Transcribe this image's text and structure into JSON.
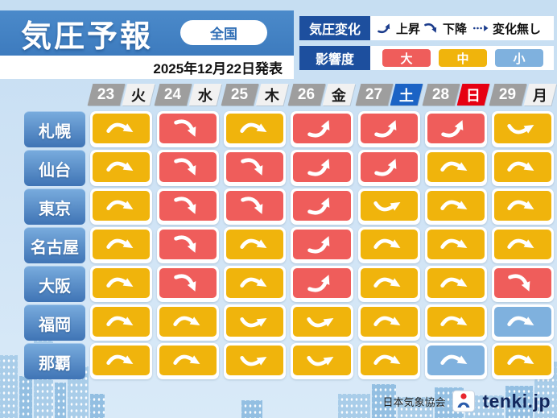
{
  "header": {
    "title": "気圧予報",
    "region_button_label": "全国",
    "announcement": "2025年12月22日発表"
  },
  "legend": {
    "pressure_change_label": "気圧変化",
    "change_items": [
      {
        "icon": "arrow-up",
        "label": "上昇"
      },
      {
        "icon": "arrow-down",
        "label": "下降"
      },
      {
        "icon": "arrow-nochange",
        "label": "変化無し"
      }
    ],
    "impact_label": "影響度",
    "impact_levels": [
      {
        "label": "大",
        "level": "large",
        "color": "#ef5d5b"
      },
      {
        "label": "中",
        "level": "medium",
        "color": "#f0b40c"
      },
      {
        "label": "小",
        "level": "small",
        "color": "#7fb1de"
      }
    ]
  },
  "dates": [
    {
      "day": "23",
      "weekday": "火",
      "type": "weekday"
    },
    {
      "day": "24",
      "weekday": "水",
      "type": "weekday"
    },
    {
      "day": "25",
      "weekday": "木",
      "type": "weekday"
    },
    {
      "day": "26",
      "weekday": "金",
      "type": "weekday"
    },
    {
      "day": "27",
      "weekday": "土",
      "type": "saturday"
    },
    {
      "day": "28",
      "weekday": "日",
      "type": "sunday"
    },
    {
      "day": "29",
      "weekday": "月",
      "type": "weekday"
    }
  ],
  "forecast": {
    "rows": [
      {
        "city": "札幌",
        "cells": [
          {
            "impact": "medium",
            "trend": "down-slight"
          },
          {
            "impact": "large",
            "trend": "down"
          },
          {
            "impact": "medium",
            "trend": "down-slight"
          },
          {
            "impact": "large",
            "trend": "up"
          },
          {
            "impact": "large",
            "trend": "up"
          },
          {
            "impact": "large",
            "trend": "up"
          },
          {
            "impact": "medium",
            "trend": "up-slight"
          }
        ]
      },
      {
        "city": "仙台",
        "cells": [
          {
            "impact": "medium",
            "trend": "down-slight"
          },
          {
            "impact": "large",
            "trend": "down"
          },
          {
            "impact": "large",
            "trend": "down"
          },
          {
            "impact": "large",
            "trend": "up"
          },
          {
            "impact": "large",
            "trend": "up"
          },
          {
            "impact": "medium",
            "trend": "down-slight"
          },
          {
            "impact": "medium",
            "trend": "down-slight"
          }
        ]
      },
      {
        "city": "東京",
        "cells": [
          {
            "impact": "medium",
            "trend": "down-slight"
          },
          {
            "impact": "large",
            "trend": "down"
          },
          {
            "impact": "large",
            "trend": "down"
          },
          {
            "impact": "large",
            "trend": "up"
          },
          {
            "impact": "medium",
            "trend": "up-slight"
          },
          {
            "impact": "medium",
            "trend": "down-slight"
          },
          {
            "impact": "medium",
            "trend": "down-slight"
          }
        ]
      },
      {
        "city": "名古屋",
        "cells": [
          {
            "impact": "medium",
            "trend": "down-slight"
          },
          {
            "impact": "large",
            "trend": "down"
          },
          {
            "impact": "medium",
            "trend": "down-slight"
          },
          {
            "impact": "large",
            "trend": "up"
          },
          {
            "impact": "medium",
            "trend": "down-slight"
          },
          {
            "impact": "medium",
            "trend": "down-slight"
          },
          {
            "impact": "medium",
            "trend": "down-slight"
          }
        ]
      },
      {
        "city": "大阪",
        "cells": [
          {
            "impact": "medium",
            "trend": "down-slight"
          },
          {
            "impact": "large",
            "trend": "down"
          },
          {
            "impact": "medium",
            "trend": "down-slight"
          },
          {
            "impact": "large",
            "trend": "up"
          },
          {
            "impact": "medium",
            "trend": "down-slight"
          },
          {
            "impact": "medium",
            "trend": "down-slight"
          },
          {
            "impact": "large",
            "trend": "down"
          }
        ]
      },
      {
        "city": "福岡",
        "cells": [
          {
            "impact": "medium",
            "trend": "down-slight"
          },
          {
            "impact": "medium",
            "trend": "down-slight"
          },
          {
            "impact": "medium",
            "trend": "up-slight"
          },
          {
            "impact": "medium",
            "trend": "up-slight"
          },
          {
            "impact": "medium",
            "trend": "down-slight"
          },
          {
            "impact": "medium",
            "trend": "down-slight"
          },
          {
            "impact": "small",
            "trend": "down-slight"
          }
        ]
      },
      {
        "city": "那覇",
        "cells": [
          {
            "impact": "medium",
            "trend": "down-slight"
          },
          {
            "impact": "medium",
            "trend": "down-slight"
          },
          {
            "impact": "medium",
            "trend": "up-slight"
          },
          {
            "impact": "medium",
            "trend": "up-slight"
          },
          {
            "impact": "medium",
            "trend": "down-slight"
          },
          {
            "impact": "small",
            "trend": "down-slight"
          },
          {
            "impact": "medium",
            "trend": "down-slight"
          }
        ]
      }
    ]
  },
  "footer": {
    "organization": "日本気象協会",
    "brand": "tenki.jp"
  },
  "colors": {
    "impact_large": "#ef5d5b",
    "impact_medium": "#f0b40c",
    "impact_small": "#7fb1de",
    "saturday_bg": "#1b63c5",
    "sunday_bg": "#e60012",
    "date_number_bg": "#9e9e9e",
    "banner_bg": "#4384c6",
    "legend_label_bg": "#1d4f9e",
    "arrow_color": "#ffffff",
    "legend_arrow_color": "#1b3c8c"
  }
}
